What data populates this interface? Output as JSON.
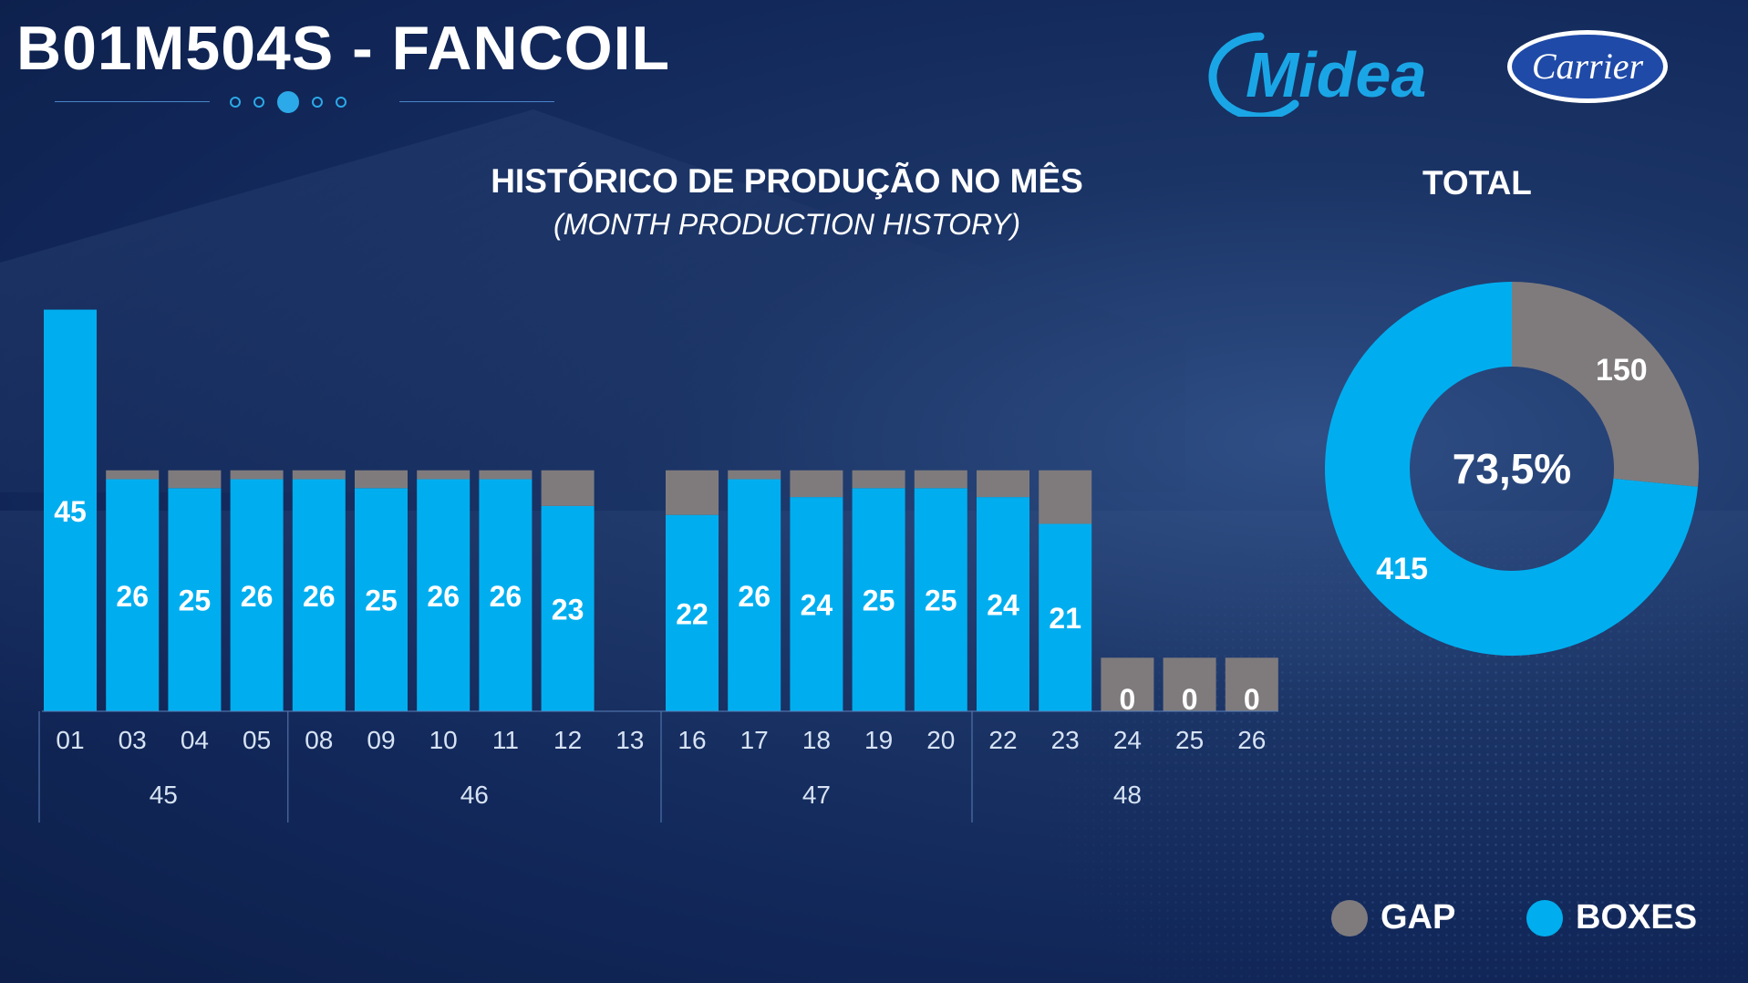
{
  "header": {
    "title": "B01M504S - FANCOIL",
    "page_indicator": {
      "count": 5,
      "active": 2
    }
  },
  "logos": {
    "midea": "Midea",
    "carrier": "Carrier"
  },
  "colors": {
    "boxes": "#00aeef",
    "gap": "#7f7b7d",
    "background": "#12285a"
  },
  "chart_data": [
    {
      "type": "bar",
      "stacked": true,
      "title": "HISTÓRICO DE PRODUÇÃO NO MÊS",
      "subtitle": "(MONTH PRODUCTION HISTORY)",
      "categories": [
        "01",
        "03",
        "04",
        "05",
        "08",
        "09",
        "10",
        "11",
        "12",
        "13",
        "16",
        "17",
        "18",
        "19",
        "20",
        "22",
        "23",
        "24",
        "25",
        "26"
      ],
      "groups": [
        {
          "label": "45",
          "categories": [
            "01",
            "03",
            "04",
            "05"
          ]
        },
        {
          "label": "46",
          "categories": [
            "08",
            "09",
            "10",
            "11",
            "12",
            "13"
          ]
        },
        {
          "label": "47",
          "categories": [
            "16",
            "17",
            "18",
            "19",
            "20"
          ]
        },
        {
          "label": "48",
          "categories": [
            "22",
            "23",
            "24",
            "25",
            "26"
          ]
        }
      ],
      "series": [
        {
          "name": "BOXES",
          "values": [
            45,
            26,
            25,
            26,
            26,
            25,
            26,
            26,
            23,
            null,
            22,
            26,
            24,
            25,
            25,
            24,
            21,
            0,
            0,
            0
          ]
        },
        {
          "name": "GAP",
          "values": [
            0,
            1,
            2,
            1,
            1,
            2,
            1,
            1,
            4,
            null,
            5,
            1,
            3,
            2,
            2,
            3,
            6,
            6,
            6,
            6
          ]
        }
      ],
      "data_labels": [
        "45",
        "26",
        "25",
        "26",
        "26",
        "25",
        "26",
        "26",
        "23",
        "",
        "22",
        "26",
        "24",
        "25",
        "25",
        "24",
        "21",
        "0",
        "0",
        "0"
      ],
      "ylim": [
        0,
        47
      ],
      "grid": false
    },
    {
      "type": "pie",
      "donut": true,
      "title": "TOTAL",
      "center_label": "73,5%",
      "slices": [
        {
          "name": "GAP",
          "value": 150,
          "label": "150"
        },
        {
          "name": "BOXES",
          "value": 415,
          "label": "415"
        }
      ]
    }
  ],
  "legend": {
    "position": "bottom-right",
    "items": [
      {
        "label": "GAP",
        "color": "#7f7b7d"
      },
      {
        "label": "BOXES",
        "color": "#00aeef"
      }
    ]
  }
}
